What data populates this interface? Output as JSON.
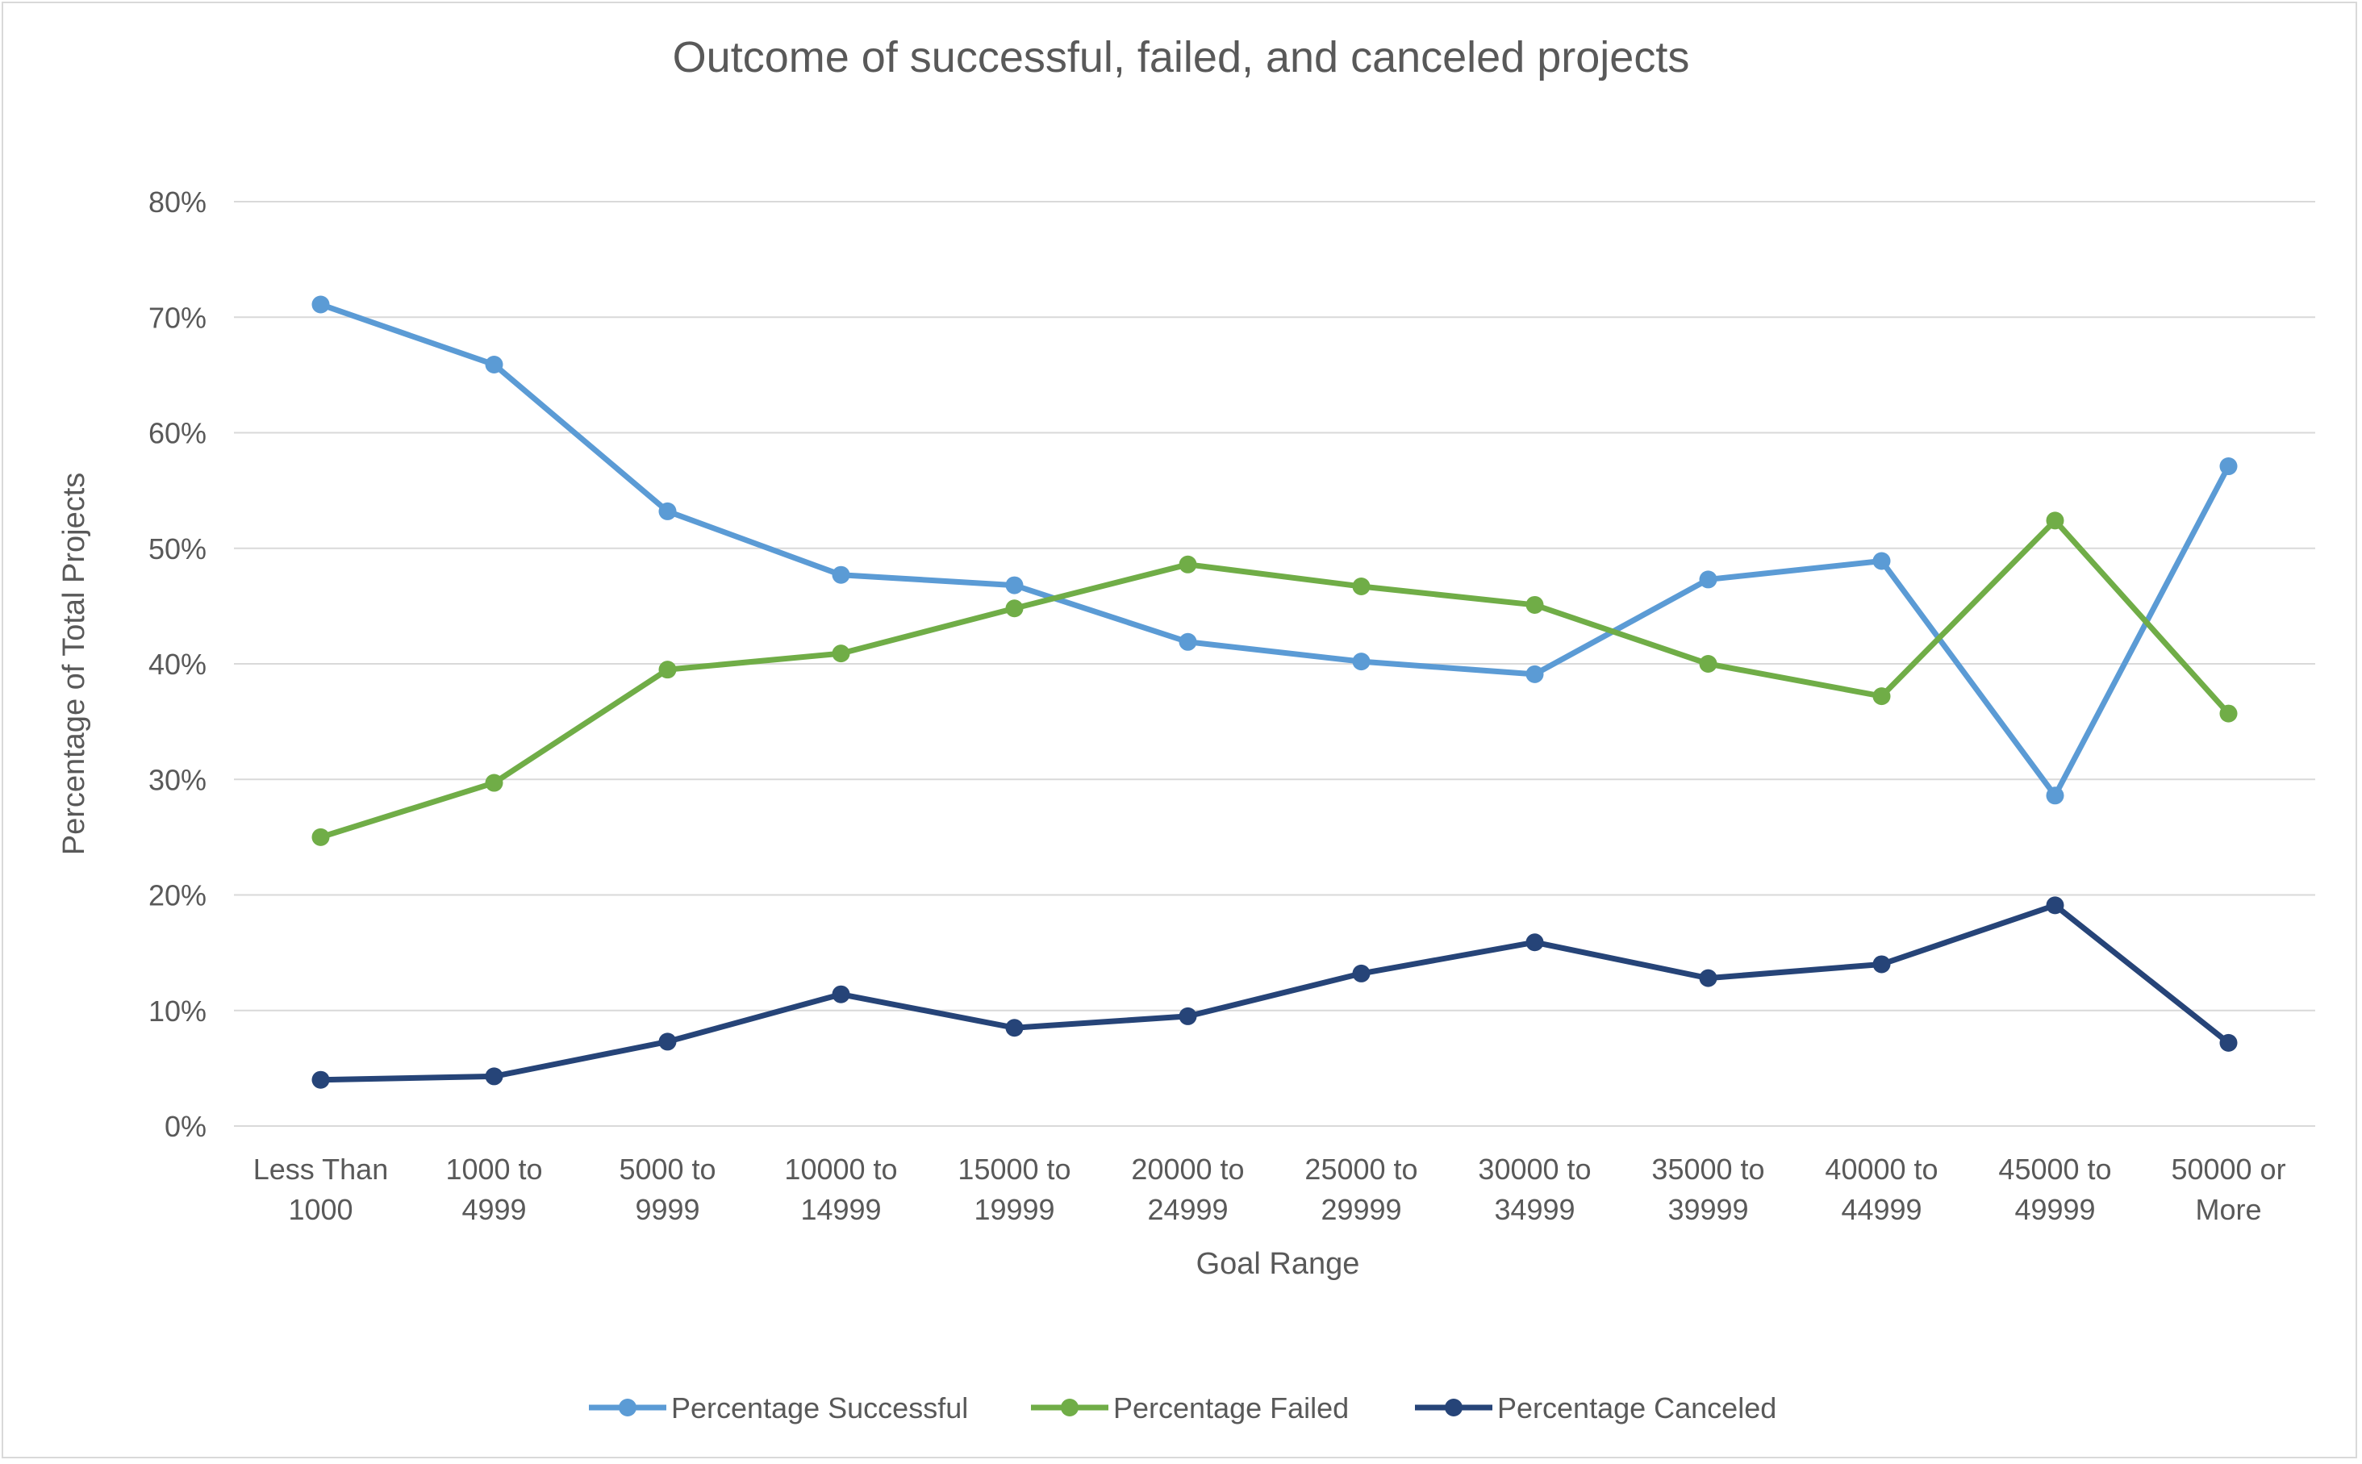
{
  "chart_data": {
    "type": "line",
    "title": "Outcome of successful, failed, and canceled projects",
    "xlabel": "Goal Range",
    "ylabel": "Percentage of Total Projects",
    "ylim": [
      0,
      80
    ],
    "yticks": [
      "0%",
      "10%",
      "20%",
      "30%",
      "40%",
      "50%",
      "60%",
      "70%",
      "80%"
    ],
    "grid": true,
    "legend_position": "bottom",
    "categories": [
      [
        "Less Than",
        "1000"
      ],
      [
        "1000 to",
        "4999"
      ],
      [
        "5000 to",
        "9999"
      ],
      [
        "10000 to",
        "14999"
      ],
      [
        "15000 to",
        "19999"
      ],
      [
        "20000 to",
        "24999"
      ],
      [
        "25000 to",
        "29999"
      ],
      [
        "30000 to",
        "34999"
      ],
      [
        "35000 to",
        "39999"
      ],
      [
        "40000 to",
        "44999"
      ],
      [
        "45000 to",
        "49999"
      ],
      [
        "50000 or",
        "More"
      ]
    ],
    "series": [
      {
        "name": "Percentage Successful",
        "color": "#5b9bd5",
        "values": [
          71.1,
          65.9,
          53.2,
          47.7,
          46.8,
          41.9,
          40.2,
          39.1,
          47.3,
          48.9,
          28.6,
          57.1
        ]
      },
      {
        "name": "Percentage Failed",
        "color": "#70ad47",
        "values": [
          25.0,
          29.7,
          39.5,
          40.9,
          44.8,
          48.6,
          46.7,
          45.1,
          40.0,
          37.2,
          52.4,
          35.7
        ]
      },
      {
        "name": "Percentage Canceled",
        "color": "#264478",
        "values": [
          4.0,
          4.3,
          7.3,
          11.4,
          8.5,
          9.5,
          13.2,
          15.9,
          12.8,
          14.0,
          19.1,
          7.2
        ]
      }
    ]
  }
}
